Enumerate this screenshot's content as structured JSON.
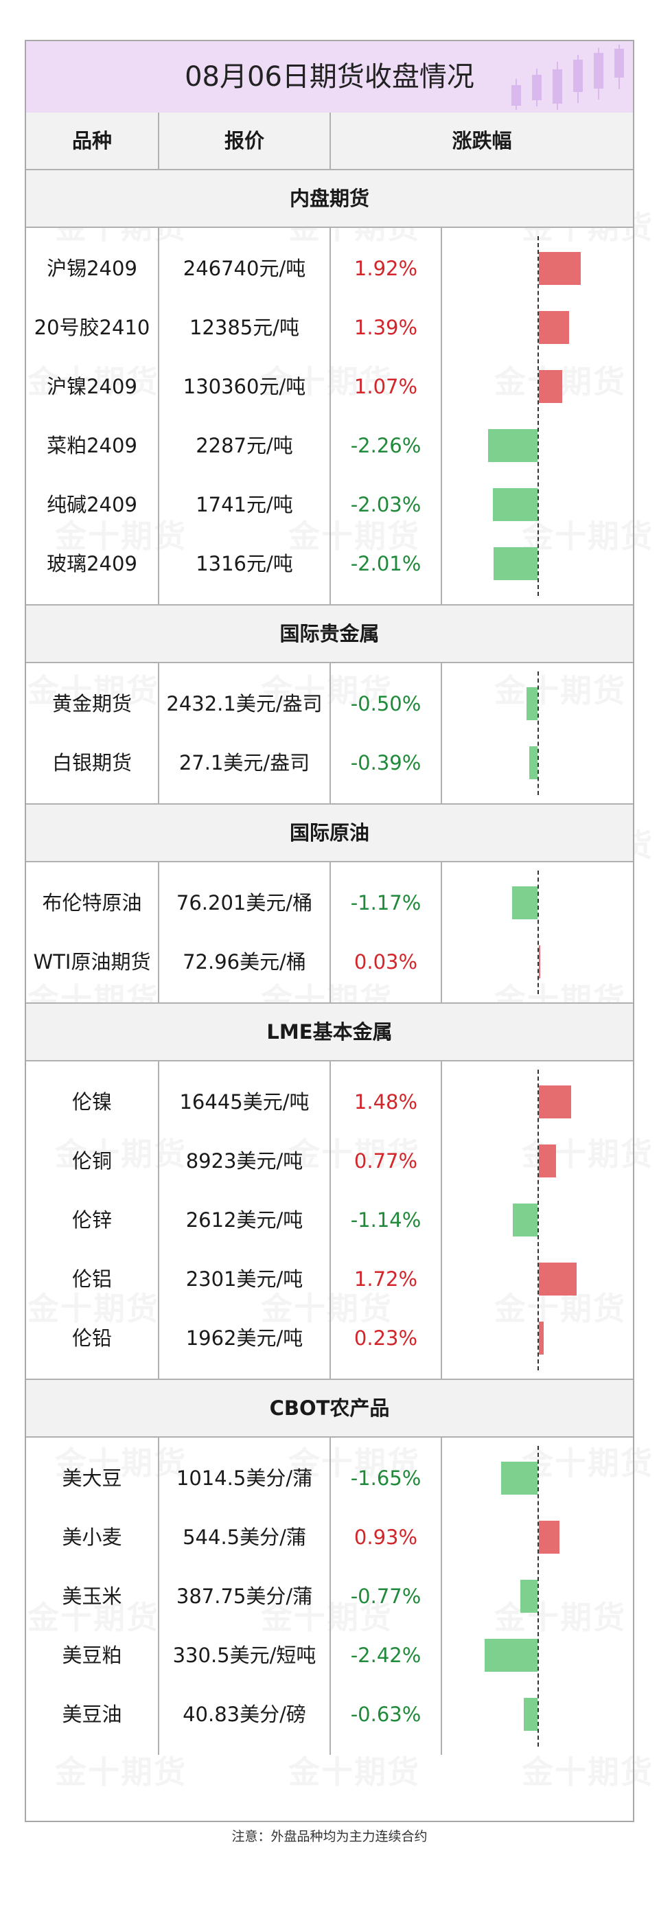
{
  "title": "08月06日期货收盘情况",
  "columns": [
    "品种",
    "报价",
    "涨跌幅"
  ],
  "watermark": "金十期货",
  "footnote": "注意：外盘品种均为主力连续合约",
  "colors": {
    "up_text": "#d2262b",
    "down_text": "#1f8a3a",
    "up_bar": "#e66d6f",
    "down_bar": "#7ed08e",
    "title_bg": "#eedcf7"
  },
  "sections": [
    {
      "name": "内盘期货",
      "rows": [
        {
          "name": "沪锡2409",
          "price": "246740元/吨",
          "change": "1.92%",
          "value": 1.92
        },
        {
          "name": "20号胶2410",
          "price": "12385元/吨",
          "change": "1.39%",
          "value": 1.39
        },
        {
          "name": "沪镍2409",
          "price": "130360元/吨",
          "change": "1.07%",
          "value": 1.07
        },
        {
          "name": "菜粕2409",
          "price": "2287元/吨",
          "change": "-2.26%",
          "value": -2.26
        },
        {
          "name": "纯碱2409",
          "price": "1741元/吨",
          "change": "-2.03%",
          "value": -2.03
        },
        {
          "name": "玻璃2409",
          "price": "1316元/吨",
          "change": "-2.01%",
          "value": -2.01
        }
      ]
    },
    {
      "name": "国际贵金属",
      "rows": [
        {
          "name": "黄金期货",
          "price": "2432.1美元/盎司",
          "change": "-0.50%",
          "value": -0.5
        },
        {
          "name": "白银期货",
          "price": "27.1美元/盎司",
          "change": "-0.39%",
          "value": -0.39
        }
      ]
    },
    {
      "name": "国际原油",
      "rows": [
        {
          "name": "布伦特原油",
          "price": "76.201美元/桶",
          "change": "-1.17%",
          "value": -1.17
        },
        {
          "name": "WTI原油期货",
          "price": "72.96美元/桶",
          "change": "0.03%",
          "value": 0.03
        }
      ]
    },
    {
      "name": "LME基本金属",
      "rows": [
        {
          "name": "伦镍",
          "price": "16445美元/吨",
          "change": "1.48%",
          "value": 1.48
        },
        {
          "name": "伦铜",
          "price": "8923美元/吨",
          "change": "0.77%",
          "value": 0.77
        },
        {
          "name": "伦锌",
          "price": "2612美元/吨",
          "change": "-1.14%",
          "value": -1.14
        },
        {
          "name": "伦铝",
          "price": "2301美元/吨",
          "change": "1.72%",
          "value": 1.72
        },
        {
          "name": "伦铅",
          "price": "1962美元/吨",
          "change": "0.23%",
          "value": 0.23
        }
      ]
    },
    {
      "name": "CBOT农产品",
      "rows": [
        {
          "name": "美大豆",
          "price": "1014.5美分/蒲",
          "change": "-1.65%",
          "value": -1.65
        },
        {
          "name": "美小麦",
          "price": "544.5美分/蒲",
          "change": "0.93%",
          "value": 0.93
        },
        {
          "name": "美玉米",
          "price": "387.75美分/蒲",
          "change": "-0.77%",
          "value": -0.77
        },
        {
          "name": "美豆粕",
          "price": "330.5美元/短吨",
          "change": "-2.42%",
          "value": -2.42
        },
        {
          "name": "美豆油",
          "price": "40.83美分/磅",
          "change": "-0.63%",
          "value": -0.63
        }
      ]
    }
  ]
}
